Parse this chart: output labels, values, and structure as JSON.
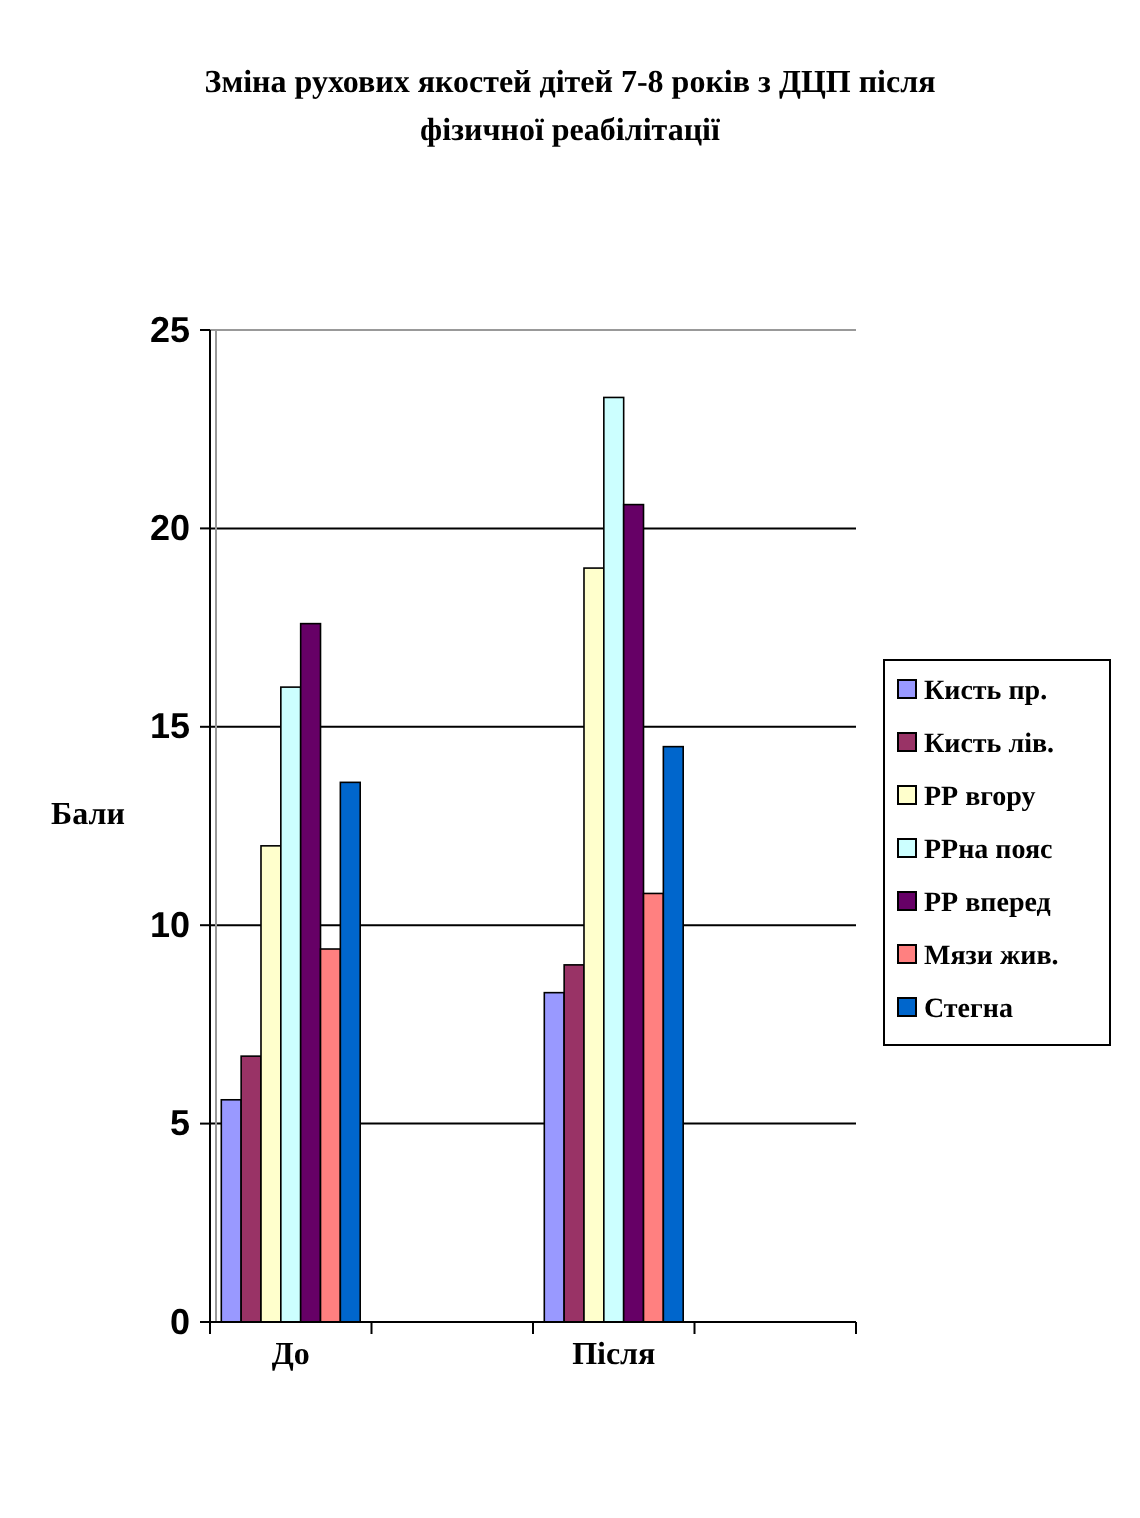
{
  "chart_data": {
    "type": "bar",
    "title": "Зміна рухових якостей дітей 7-8 років з ДЦП після фізичної реабілітації",
    "ylabel": "Бали",
    "categories": [
      "До",
      null,
      "Після",
      null
    ],
    "series": [
      {
        "name": "Кисть пр.",
        "color": "#9999ff",
        "values": [
          5.6,
          null,
          8.3,
          null
        ]
      },
      {
        "name": "Кисть лів.",
        "color": "#993366",
        "values": [
          6.7,
          null,
          9.0,
          null
        ]
      },
      {
        "name": "РР вгору",
        "color": "#ffffcc",
        "values": [
          12,
          null,
          19.0,
          null
        ]
      },
      {
        "name": "РРна пояс",
        "color": "#ccffff",
        "values": [
          16,
          null,
          23.3,
          null
        ]
      },
      {
        "name": "РР вперед",
        "color": "#660066",
        "values": [
          17.6,
          null,
          20.6,
          null
        ]
      },
      {
        "name": "Мязи жив.",
        "color": "#ff8080",
        "values": [
          9.4,
          null,
          10.8,
          null
        ]
      },
      {
        "name": "Стегна",
        "color": "#0066cc",
        "values": [
          13.6,
          null,
          14.5,
          null
        ]
      }
    ],
    "ylim": [
      0,
      25
    ],
    "yticks": [
      0,
      5,
      10,
      15,
      20,
      25
    ],
    "grid": "y",
    "legend": "right"
  }
}
